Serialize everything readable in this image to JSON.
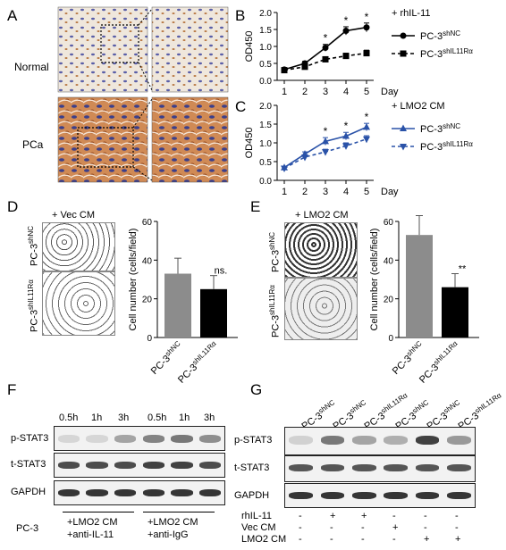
{
  "panels": [
    "A",
    "B",
    "C",
    "D",
    "E",
    "F",
    "G"
  ],
  "panelA": {
    "rows": [
      "Normal",
      "PCa"
    ]
  },
  "chart_data": [
    {
      "id": "B",
      "type": "line",
      "x": [
        1,
        2,
        3,
        4,
        5
      ],
      "xlabel": "Day",
      "ylabel": "OD450",
      "ylim": [
        0,
        2.0
      ],
      "yticks": [
        0.0,
        0.5,
        1.0,
        1.5,
        2.0
      ],
      "title": "+ rhIL-11",
      "color": "#000000",
      "series": [
        {
          "name": "PC-3",
          "sup": "shNC",
          "values": [
            0.32,
            0.5,
            0.96,
            1.46,
            1.56
          ],
          "err": [
            0.05,
            0.06,
            0.1,
            0.12,
            0.13
          ],
          "marker": "circle",
          "dash": false
        },
        {
          "name": "PC-3",
          "sup": "shIL11Rα",
          "values": [
            0.3,
            0.4,
            0.62,
            0.72,
            0.8
          ],
          "err": [
            0.04,
            0.05,
            0.07,
            0.08,
            0.09
          ],
          "marker": "square",
          "dash": true
        }
      ],
      "significance": [
        "",
        "",
        "*",
        "*",
        "*"
      ]
    },
    {
      "id": "C",
      "type": "line",
      "x": [
        1,
        2,
        3,
        4,
        5
      ],
      "xlabel": "Day",
      "ylabel": "OD450",
      "ylim": [
        0,
        2.0
      ],
      "yticks": [
        0.0,
        0.5,
        1.0,
        1.5,
        2.0
      ],
      "title": "+ LMO2 CM",
      "color": "#2a52a8",
      "series": [
        {
          "name": "PC-3",
          "sup": "shNC",
          "values": [
            0.34,
            0.7,
            1.04,
            1.18,
            1.42
          ],
          "err": [
            0.04,
            0.06,
            0.1,
            0.1,
            0.1
          ],
          "marker": "triangle",
          "dash": false
        },
        {
          "name": "PC-3",
          "sup": "shIL11Rα",
          "values": [
            0.32,
            0.62,
            0.76,
            0.92,
            1.1
          ],
          "err": [
            0.04,
            0.05,
            0.07,
            0.08,
            0.09
          ],
          "marker": "triangle-down",
          "dash": true
        }
      ],
      "significance": [
        "",
        "",
        "*",
        "*",
        "*"
      ]
    },
    {
      "id": "D",
      "type": "bar",
      "title": "+ Vec CM",
      "ylabel": "Cell number (cells/field)",
      "ylim": [
        0,
        60
      ],
      "yticks": [
        0,
        20,
        40,
        60
      ],
      "categories": [
        {
          "name": "PC-3",
          "sup": "shNC"
        },
        {
          "name": "PC-3",
          "sup": "shIL11Rα"
        }
      ],
      "values": [
        33,
        25
      ],
      "err": [
        8,
        7
      ],
      "colors": [
        "#8c8c8c",
        "#000000"
      ],
      "significance": [
        "",
        "ns."
      ],
      "image_labels": [
        {
          "name": "PC-3",
          "sup": "shNC"
        },
        {
          "name": "PC-3",
          "sup": "shIL11Rα"
        }
      ]
    },
    {
      "id": "E",
      "type": "bar",
      "title": "+ LMO2 CM",
      "ylabel": "Cell number (cells/field)",
      "ylim": [
        0,
        60
      ],
      "yticks": [
        0,
        20,
        40,
        60
      ],
      "categories": [
        {
          "name": "PC-3",
          "sup": "shNC"
        },
        {
          "name": "PC-3",
          "sup": "shIL11Rα"
        }
      ],
      "values": [
        53,
        26
      ],
      "err": [
        10,
        7
      ],
      "colors": [
        "#8c8c8c",
        "#000000"
      ],
      "significance": [
        "",
        "**"
      ],
      "image_labels": [
        {
          "name": "PC-3",
          "sup": "shNC"
        },
        {
          "name": "PC-3",
          "sup": "shIL11Rα"
        }
      ]
    }
  ],
  "panelF": {
    "timepoints": [
      "0.5h",
      "1h",
      "3h",
      "0.5h",
      "1h",
      "3h"
    ],
    "rows": [
      "p-STAT3",
      "t-STAT3",
      "GAPDH"
    ],
    "cell_label": "PC-3",
    "groups": [
      "+LMO2 CM\n+anti-IL-11",
      "+LMO2 CM\n+anti-IgG"
    ],
    "group1_line1": "+LMO2 CM",
    "group1_line2": "+anti-IL-11",
    "group2_line1": "+LMO2 CM",
    "group2_line2": "+anti-IgG"
  },
  "panelG": {
    "lanes": [
      {
        "name": "PC-3",
        "sup": "shNC"
      },
      {
        "name": "PC-3",
        "sup": "shNC"
      },
      {
        "name": "PC-3",
        "sup": "shIL11Rα"
      },
      {
        "name": "PC-3",
        "sup": "shNC"
      },
      {
        "name": "PC-3",
        "sup": "shNC"
      },
      {
        "name": "PC-3",
        "sup": "shIL11Rα"
      }
    ],
    "rows": [
      "p-STAT3",
      "t-STAT3",
      "GAPDH"
    ],
    "treatments": [
      {
        "label": "rhIL-11",
        "marks": [
          "-",
          "+",
          "+",
          "-",
          "-",
          "-"
        ]
      },
      {
        "label": "Vec CM",
        "marks": [
          "-",
          "-",
          "-",
          "+",
          "-",
          "-"
        ]
      },
      {
        "label": "LMO2 CM",
        "marks": [
          "-",
          "-",
          "-",
          "-",
          "+",
          "+"
        ]
      }
    ]
  }
}
